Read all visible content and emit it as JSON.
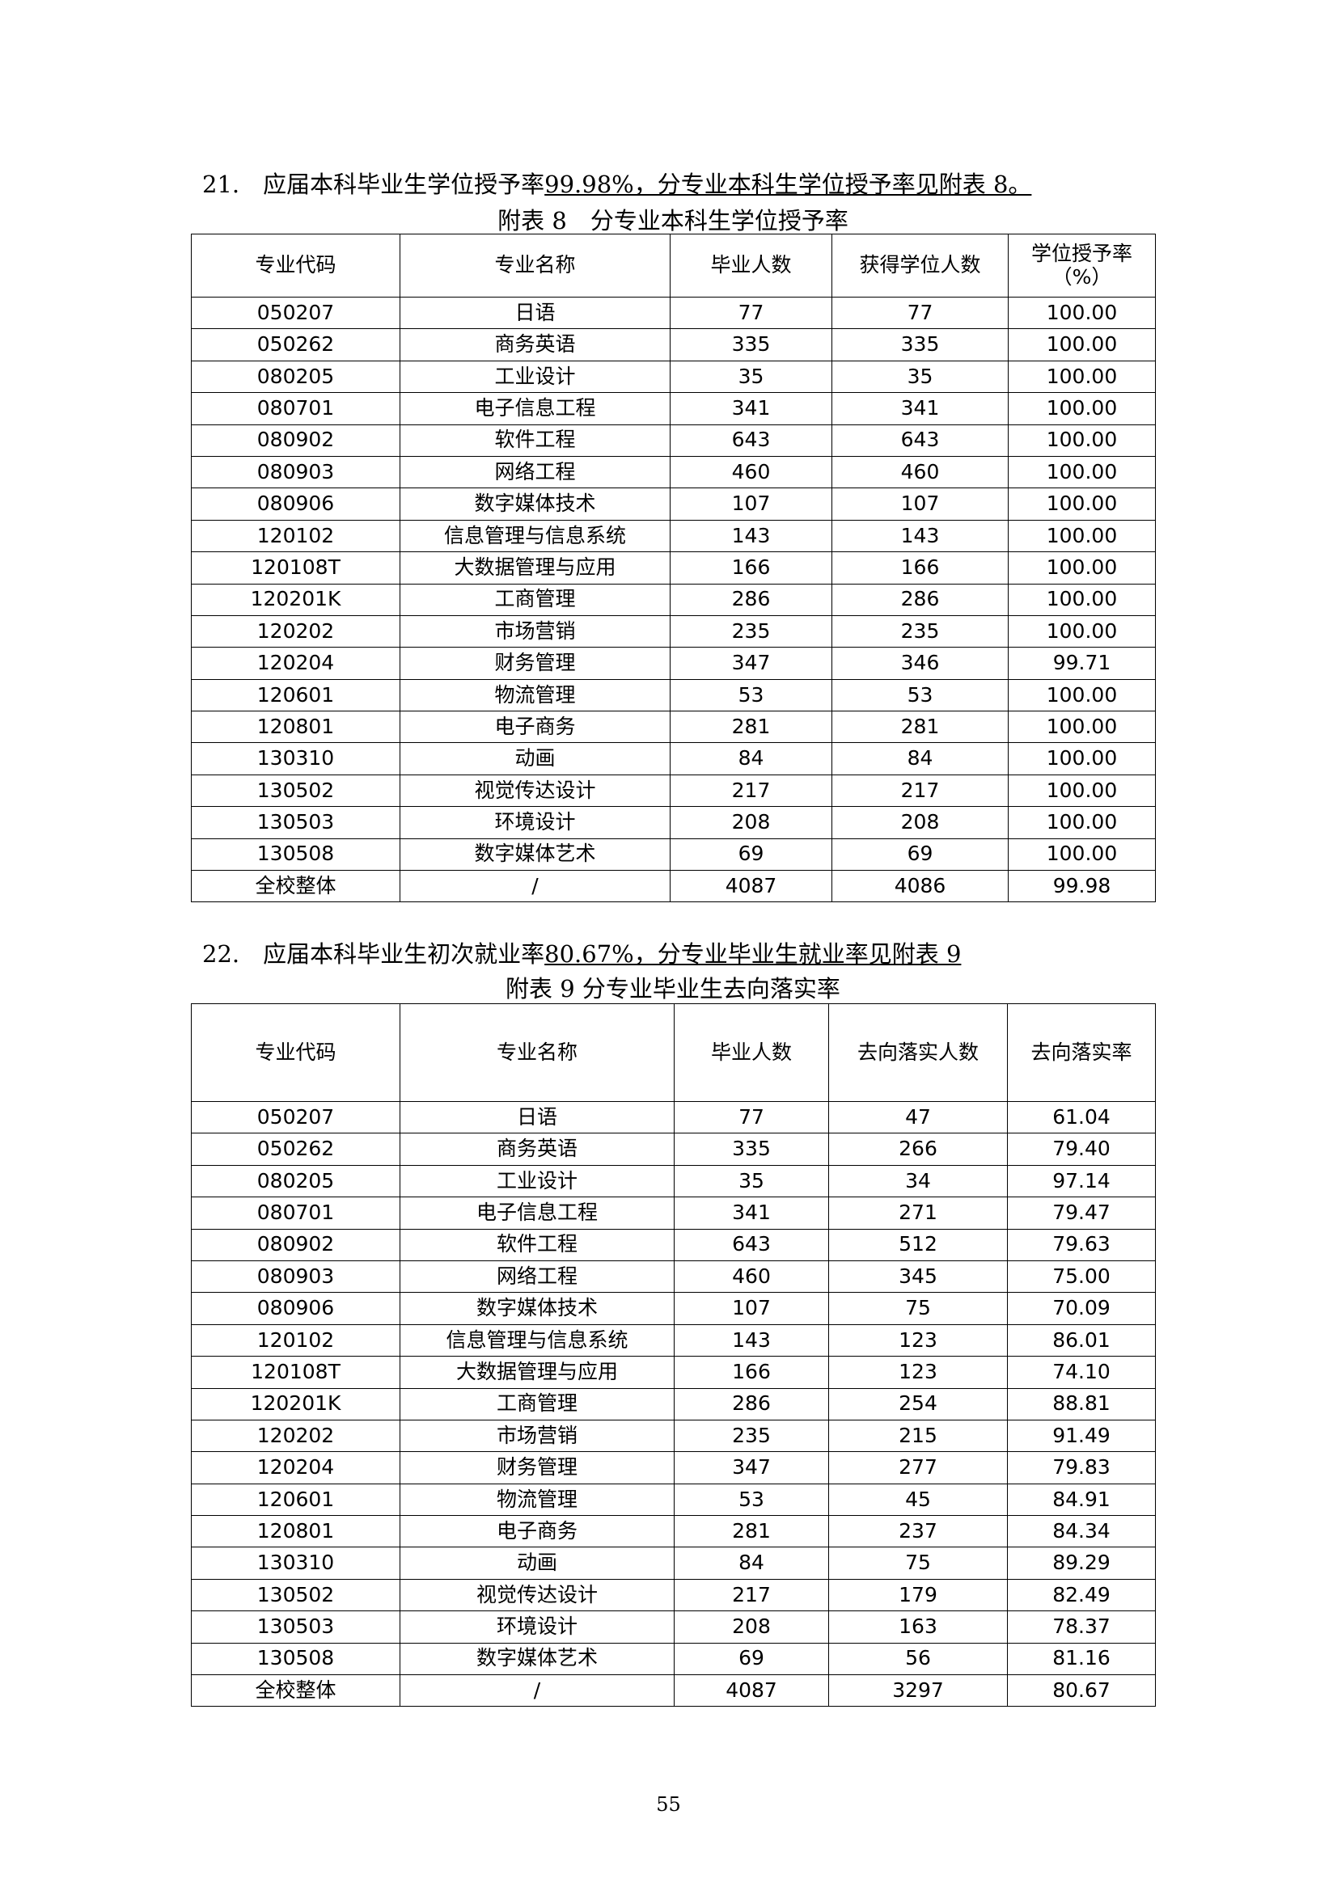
{
  "sections": [
    {
      "heading": {
        "number": "21.",
        "text": "应届本科毕业生学位授予率",
        "underlined": "99.98%，分专业本科生学位授予率见附表 8。"
      },
      "table": {
        "caption": "附表 8　分专业本科生学位授予率",
        "header": [
          "专业代码",
          "专业名称",
          "毕业人数",
          "获得学位人数",
          [
            "学位授予率",
            "（%）"
          ]
        ],
        "rows": [
          [
            "050207",
            "日语",
            "77",
            "77",
            "100.00"
          ],
          [
            "050262",
            "商务英语",
            "335",
            "335",
            "100.00"
          ],
          [
            "080205",
            "工业设计",
            "35",
            "35",
            "100.00"
          ],
          [
            "080701",
            "电子信息工程",
            "341",
            "341",
            "100.00"
          ],
          [
            "080902",
            "软件工程",
            "643",
            "643",
            "100.00"
          ],
          [
            "080903",
            "网络工程",
            "460",
            "460",
            "100.00"
          ],
          [
            "080906",
            "数字媒体技术",
            "107",
            "107",
            "100.00"
          ],
          [
            "120102",
            "信息管理与信息系统",
            "143",
            "143",
            "100.00"
          ],
          [
            "120108T",
            "大数据管理与应用",
            "166",
            "166",
            "100.00"
          ],
          [
            "120201K",
            "工商管理",
            "286",
            "286",
            "100.00"
          ],
          [
            "120202",
            "市场营销",
            "235",
            "235",
            "100.00"
          ],
          [
            "120204",
            "财务管理",
            "347",
            "346",
            "99.71"
          ],
          [
            "120601",
            "物流管理",
            "53",
            "53",
            "100.00"
          ],
          [
            "120801",
            "电子商务",
            "281",
            "281",
            "100.00"
          ],
          [
            "130310",
            "动画",
            "84",
            "84",
            "100.00"
          ],
          [
            "130502",
            "视觉传达设计",
            "217",
            "217",
            "100.00"
          ],
          [
            "130503",
            "环境设计",
            "208",
            "208",
            "100.00"
          ],
          [
            "130508",
            "数字媒体艺术",
            "69",
            "69",
            "100.00"
          ],
          [
            "全校整体",
            "/",
            "4087",
            "4086",
            "99.98"
          ]
        ]
      }
    },
    {
      "heading": {
        "number": "22.",
        "text": "应届本科毕业生初次就业率",
        "underlined": "80.67%，分专业毕业生就业率见附表 9"
      },
      "table": {
        "caption": "附表 9 分专业毕业生去向落实率",
        "header": [
          "专业代码",
          "专业名称",
          "毕业人数",
          "去向落实人数",
          "去向落实率"
        ],
        "rows": [
          [
            "050207",
            "日语",
            "77",
            "47",
            "61.04"
          ],
          [
            "050262",
            "商务英语",
            "335",
            "266",
            "79.40"
          ],
          [
            "080205",
            "工业设计",
            "35",
            "34",
            "97.14"
          ],
          [
            "080701",
            "电子信息工程",
            "341",
            "271",
            "79.47"
          ],
          [
            "080902",
            "软件工程",
            "643",
            "512",
            "79.63"
          ],
          [
            "080903",
            "网络工程",
            "460",
            "345",
            "75.00"
          ],
          [
            "080906",
            "数字媒体技术",
            "107",
            "75",
            "70.09"
          ],
          [
            "120102",
            "信息管理与信息系统",
            "143",
            "123",
            "86.01"
          ],
          [
            "120108T",
            "大数据管理与应用",
            "166",
            "123",
            "74.10"
          ],
          [
            "120201K",
            "工商管理",
            "286",
            "254",
            "88.81"
          ],
          [
            "120202",
            "市场营销",
            "235",
            "215",
            "91.49"
          ],
          [
            "120204",
            "财务管理",
            "347",
            "277",
            "79.83"
          ],
          [
            "120601",
            "物流管理",
            "53",
            "45",
            "84.91"
          ],
          [
            "120801",
            "电子商务",
            "281",
            "237",
            "84.34"
          ],
          [
            "130310",
            "动画",
            "84",
            "75",
            "89.29"
          ],
          [
            "130502",
            "视觉传达设计",
            "217",
            "179",
            "82.49"
          ],
          [
            "130503",
            "环境设计",
            "208",
            "163",
            "78.37"
          ],
          [
            "130508",
            "数字媒体艺术",
            "69",
            "56",
            "81.16"
          ],
          [
            "全校整体",
            "/",
            "4087",
            "3297",
            "80.67"
          ]
        ]
      }
    }
  ],
  "page_number": "55"
}
